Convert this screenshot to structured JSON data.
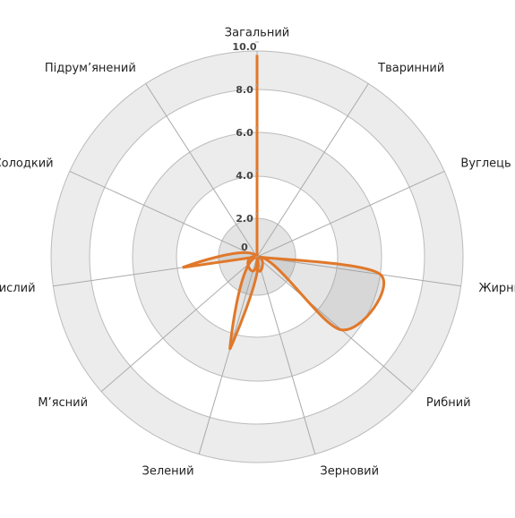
{
  "chart_data": {
    "type": "radar",
    "categories": [
      "Загальний",
      "Тваринний",
      "Вуглець",
      "Жирний",
      "Рибний",
      "Зерновий",
      "Зелений",
      "М’ясний",
      "Кислий",
      "Солодкий",
      "Підрум’янений"
    ],
    "series": [
      {
        "color": "#e0782a",
        "values": [
          9.4,
          0,
          0,
          5.8,
          5.2,
          0,
          4.5,
          0,
          3.5,
          0,
          0
        ]
      }
    ],
    "ylim": [
      0,
      10
    ],
    "yticks": [
      0,
      {
        "value": 2,
        "label": "2.0"
      },
      {
        "value": 4,
        "label": "4.0"
      },
      {
        "value": 6,
        "label": "6.0"
      },
      {
        "value": 8,
        "label": "8.0"
      },
      {
        "value": 10,
        "label": "10.0"
      }
    ]
  }
}
